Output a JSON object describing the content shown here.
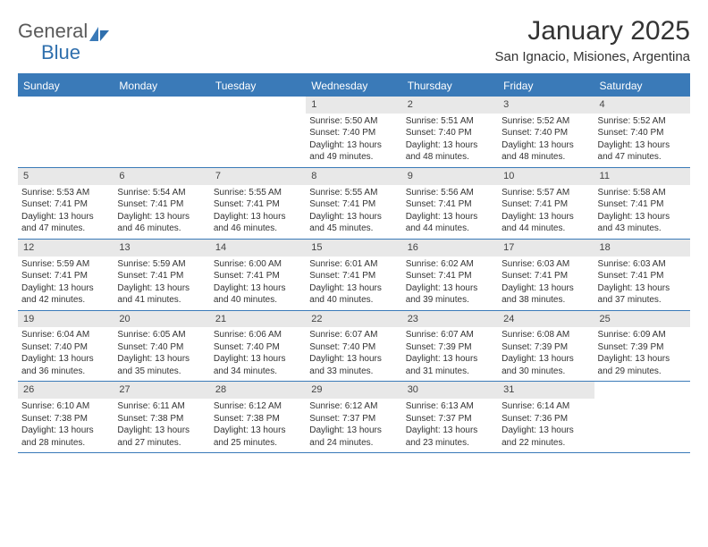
{
  "logo": {
    "text1": "General",
    "text2": "Blue"
  },
  "header": {
    "month_title": "January 2025",
    "location": "San Ignacio, Misiones, Argentina"
  },
  "colors": {
    "header_bg": "#3a7ab8",
    "daynum_bg": "#e8e8e8",
    "text": "#333333",
    "logo_gray": "#5a5a5a",
    "logo_blue": "#2f6fad"
  },
  "day_headers": [
    "Sunday",
    "Monday",
    "Tuesday",
    "Wednesday",
    "Thursday",
    "Friday",
    "Saturday"
  ],
  "weeks": [
    [
      {
        "day": "",
        "sunrise": "",
        "sunset": "",
        "daylight": ""
      },
      {
        "day": "",
        "sunrise": "",
        "sunset": "",
        "daylight": ""
      },
      {
        "day": "",
        "sunrise": "",
        "sunset": "",
        "daylight": ""
      },
      {
        "day": "1",
        "sunrise": "5:50 AM",
        "sunset": "7:40 PM",
        "daylight": "13 hours and 49 minutes."
      },
      {
        "day": "2",
        "sunrise": "5:51 AM",
        "sunset": "7:40 PM",
        "daylight": "13 hours and 48 minutes."
      },
      {
        "day": "3",
        "sunrise": "5:52 AM",
        "sunset": "7:40 PM",
        "daylight": "13 hours and 48 minutes."
      },
      {
        "day": "4",
        "sunrise": "5:52 AM",
        "sunset": "7:40 PM",
        "daylight": "13 hours and 47 minutes."
      }
    ],
    [
      {
        "day": "5",
        "sunrise": "5:53 AM",
        "sunset": "7:41 PM",
        "daylight": "13 hours and 47 minutes."
      },
      {
        "day": "6",
        "sunrise": "5:54 AM",
        "sunset": "7:41 PM",
        "daylight": "13 hours and 46 minutes."
      },
      {
        "day": "7",
        "sunrise": "5:55 AM",
        "sunset": "7:41 PM",
        "daylight": "13 hours and 46 minutes."
      },
      {
        "day": "8",
        "sunrise": "5:55 AM",
        "sunset": "7:41 PM",
        "daylight": "13 hours and 45 minutes."
      },
      {
        "day": "9",
        "sunrise": "5:56 AM",
        "sunset": "7:41 PM",
        "daylight": "13 hours and 44 minutes."
      },
      {
        "day": "10",
        "sunrise": "5:57 AM",
        "sunset": "7:41 PM",
        "daylight": "13 hours and 44 minutes."
      },
      {
        "day": "11",
        "sunrise": "5:58 AM",
        "sunset": "7:41 PM",
        "daylight": "13 hours and 43 minutes."
      }
    ],
    [
      {
        "day": "12",
        "sunrise": "5:59 AM",
        "sunset": "7:41 PM",
        "daylight": "13 hours and 42 minutes."
      },
      {
        "day": "13",
        "sunrise": "5:59 AM",
        "sunset": "7:41 PM",
        "daylight": "13 hours and 41 minutes."
      },
      {
        "day": "14",
        "sunrise": "6:00 AM",
        "sunset": "7:41 PM",
        "daylight": "13 hours and 40 minutes."
      },
      {
        "day": "15",
        "sunrise": "6:01 AM",
        "sunset": "7:41 PM",
        "daylight": "13 hours and 40 minutes."
      },
      {
        "day": "16",
        "sunrise": "6:02 AM",
        "sunset": "7:41 PM",
        "daylight": "13 hours and 39 minutes."
      },
      {
        "day": "17",
        "sunrise": "6:03 AM",
        "sunset": "7:41 PM",
        "daylight": "13 hours and 38 minutes."
      },
      {
        "day": "18",
        "sunrise": "6:03 AM",
        "sunset": "7:41 PM",
        "daylight": "13 hours and 37 minutes."
      }
    ],
    [
      {
        "day": "19",
        "sunrise": "6:04 AM",
        "sunset": "7:40 PM",
        "daylight": "13 hours and 36 minutes."
      },
      {
        "day": "20",
        "sunrise": "6:05 AM",
        "sunset": "7:40 PM",
        "daylight": "13 hours and 35 minutes."
      },
      {
        "day": "21",
        "sunrise": "6:06 AM",
        "sunset": "7:40 PM",
        "daylight": "13 hours and 34 minutes."
      },
      {
        "day": "22",
        "sunrise": "6:07 AM",
        "sunset": "7:40 PM",
        "daylight": "13 hours and 33 minutes."
      },
      {
        "day": "23",
        "sunrise": "6:07 AM",
        "sunset": "7:39 PM",
        "daylight": "13 hours and 31 minutes."
      },
      {
        "day": "24",
        "sunrise": "6:08 AM",
        "sunset": "7:39 PM",
        "daylight": "13 hours and 30 minutes."
      },
      {
        "day": "25",
        "sunrise": "6:09 AM",
        "sunset": "7:39 PM",
        "daylight": "13 hours and 29 minutes."
      }
    ],
    [
      {
        "day": "26",
        "sunrise": "6:10 AM",
        "sunset": "7:38 PM",
        "daylight": "13 hours and 28 minutes."
      },
      {
        "day": "27",
        "sunrise": "6:11 AM",
        "sunset": "7:38 PM",
        "daylight": "13 hours and 27 minutes."
      },
      {
        "day": "28",
        "sunrise": "6:12 AM",
        "sunset": "7:38 PM",
        "daylight": "13 hours and 25 minutes."
      },
      {
        "day": "29",
        "sunrise": "6:12 AM",
        "sunset": "7:37 PM",
        "daylight": "13 hours and 24 minutes."
      },
      {
        "day": "30",
        "sunrise": "6:13 AM",
        "sunset": "7:37 PM",
        "daylight": "13 hours and 23 minutes."
      },
      {
        "day": "31",
        "sunrise": "6:14 AM",
        "sunset": "7:36 PM",
        "daylight": "13 hours and 22 minutes."
      },
      {
        "day": "",
        "sunrise": "",
        "sunset": "",
        "daylight": ""
      }
    ]
  ],
  "labels": {
    "sunrise_prefix": "Sunrise: ",
    "sunset_prefix": "Sunset: ",
    "daylight_prefix": "Daylight: "
  }
}
